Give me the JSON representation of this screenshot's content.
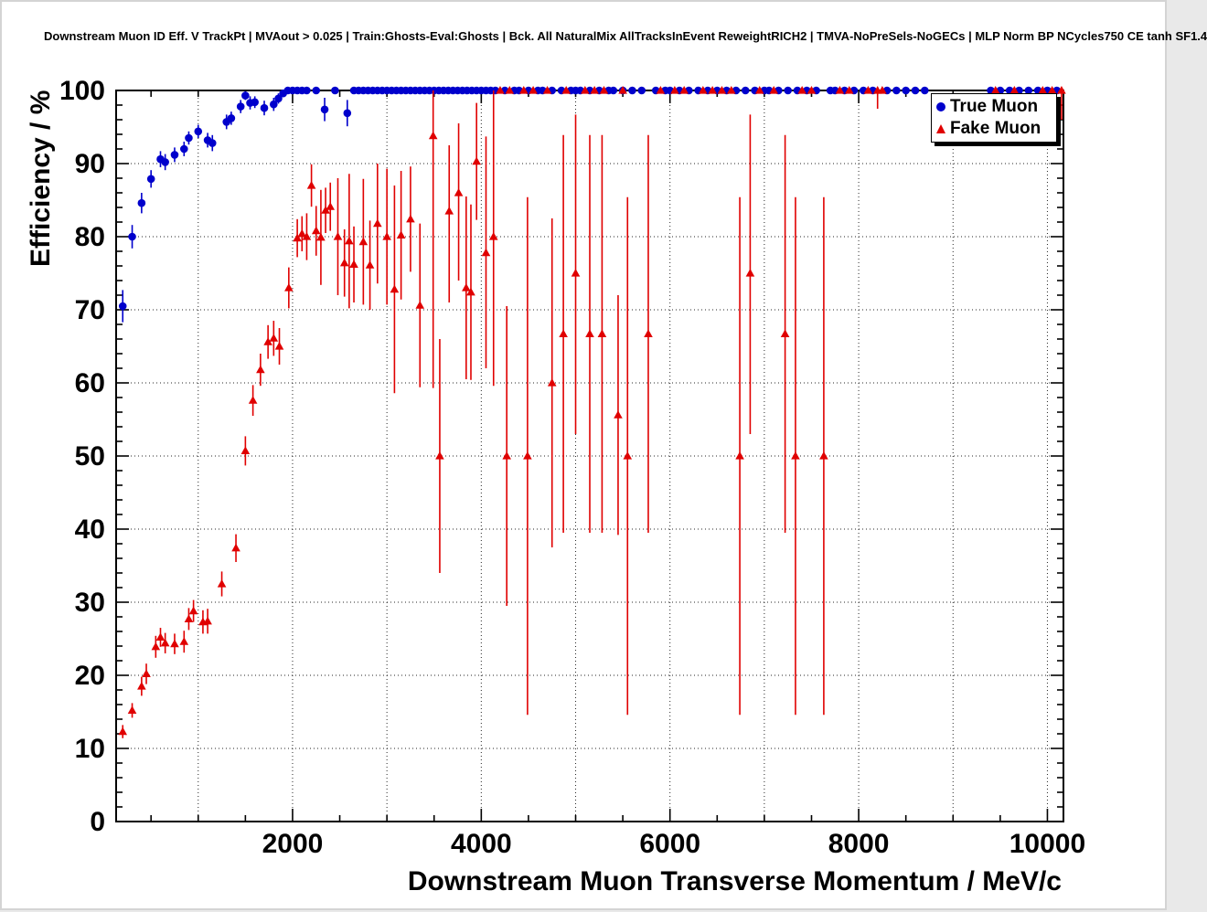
{
  "header": {
    "title": "Downstream Muon ID Eff. V TrackPt | MVAout > 0.025 | Train:Ghosts-Eval:Ghosts | Bck. All NaturalMix AllTracksInEvent ReweightRICH2 | TMVA-NoPreSels-NoGECs | MLP Norm BP NCycles750 CE tanh SF1.4"
  },
  "chart_data": {
    "type": "scatter",
    "title": "Downstream Muon ID Eff. V TrackPt | MVAout > 0.025 | Train:Ghosts-Eval:Ghosts | Bck. All NaturalMix AllTracksInEvent ReweightRICH2 | TMVA-NoPreSels-NoGECs | MLP Norm BP NCycles750 CE tanh SF1.4",
    "xlabel": "Downstream Muon Transverse Momentum / MeV/c",
    "ylabel": "Efficiency / %",
    "xlim": [
      130,
      10170
    ],
    "ylim": [
      0,
      100
    ],
    "grid": {
      "x_step": 1000,
      "y_step": 10,
      "style": "dotted"
    },
    "x_ticks": {
      "values": [
        2000,
        4000,
        6000,
        8000,
        10000
      ],
      "labels": [
        "2000",
        "4000",
        "6000",
        "8000",
        "10000"
      ],
      "minor_step": 500
    },
    "y_ticks": {
      "values": [
        0,
        10,
        20,
        30,
        40,
        50,
        60,
        70,
        80,
        90,
        100
      ],
      "labels": [
        "0",
        "10",
        "20",
        "30",
        "40",
        "50",
        "60",
        "70",
        "80",
        "90",
        "100"
      ],
      "minor_step": 2
    },
    "legend_position": "top-right",
    "series": [
      {
        "name": "True Muon",
        "marker": "circle",
        "color": "#0000cc",
        "points": [
          [
            200,
            70.5,
            2.2
          ],
          [
            300,
            80.0,
            1.6
          ],
          [
            400,
            84.6,
            1.4
          ],
          [
            500,
            87.9,
            1.2
          ],
          [
            600,
            90.6,
            1.1
          ],
          [
            650,
            90.2,
            1.1
          ],
          [
            750,
            91.2,
            1.0
          ],
          [
            850,
            92.0,
            1.0
          ],
          [
            900,
            93.5,
            0.9
          ],
          [
            1000,
            94.4,
            0.9
          ],
          [
            1100,
            93.2,
            1.0
          ],
          [
            1150,
            92.8,
            1.1
          ],
          [
            1300,
            95.7,
            1.0
          ],
          [
            1350,
            96.2,
            0.9
          ],
          [
            1450,
            97.8,
            0.9
          ],
          [
            1500,
            99.3,
            0.6
          ],
          [
            1550,
            98.3,
            0.9
          ],
          [
            1600,
            98.4,
            0.8
          ],
          [
            1700,
            97.6,
            1.0
          ],
          [
            1800,
            98.1,
            0.9
          ],
          [
            1850,
            98.9,
            0.7
          ],
          [
            1900,
            99.6,
            0.4
          ],
          [
            1950,
            100
          ],
          [
            2000,
            100
          ],
          [
            2050,
            100
          ],
          [
            2100,
            100
          ],
          [
            2150,
            100
          ],
          [
            2250,
            100
          ],
          [
            2340,
            97.4,
            1.6
          ],
          [
            2450,
            100
          ],
          [
            2580,
            96.9,
            1.8
          ],
          [
            2650,
            100
          ],
          [
            2700,
            100
          ],
          [
            2750,
            100
          ],
          [
            2800,
            100
          ],
          [
            2850,
            100
          ],
          [
            2900,
            100
          ],
          [
            2950,
            100
          ],
          [
            3000,
            100
          ],
          [
            3050,
            100
          ],
          [
            3100,
            100
          ],
          [
            3150,
            100
          ],
          [
            3200,
            100
          ],
          [
            3250,
            100
          ],
          [
            3300,
            100
          ],
          [
            3350,
            100
          ],
          [
            3400,
            100
          ],
          [
            3450,
            100
          ],
          [
            3500,
            100
          ],
          [
            3550,
            100
          ],
          [
            3600,
            100
          ],
          [
            3650,
            100
          ],
          [
            3700,
            100
          ],
          [
            3750,
            100
          ],
          [
            3800,
            100
          ],
          [
            3850,
            100
          ],
          [
            3900,
            100
          ],
          [
            3950,
            100
          ],
          [
            4000,
            100
          ],
          [
            4050,
            100
          ],
          [
            4100,
            100
          ],
          [
            4150,
            100
          ],
          [
            4250,
            100
          ],
          [
            4350,
            100
          ],
          [
            4400,
            100
          ],
          [
            4500,
            100
          ],
          [
            4600,
            100
          ],
          [
            4650,
            100
          ],
          [
            4750,
            100
          ],
          [
            4850,
            100
          ],
          [
            4950,
            100
          ],
          [
            5000,
            100
          ],
          [
            5050,
            100
          ],
          [
            5150,
            100
          ],
          [
            5250,
            100
          ],
          [
            5350,
            100
          ],
          [
            5400,
            100
          ],
          [
            5500,
            100
          ],
          [
            5600,
            100
          ],
          [
            5700,
            100
          ],
          [
            5850,
            100
          ],
          [
            5950,
            100
          ],
          [
            6000,
            100
          ],
          [
            6100,
            100
          ],
          [
            6200,
            100
          ],
          [
            6300,
            100
          ],
          [
            6400,
            100
          ],
          [
            6500,
            100
          ],
          [
            6600,
            100
          ],
          [
            6700,
            100
          ],
          [
            6800,
            100
          ],
          [
            6900,
            100
          ],
          [
            7000,
            100
          ],
          [
            7050,
            100
          ],
          [
            7150,
            100
          ],
          [
            7250,
            100
          ],
          [
            7350,
            100
          ],
          [
            7450,
            100
          ],
          [
            7550,
            100
          ],
          [
            7700,
            100
          ],
          [
            7750,
            100
          ],
          [
            7850,
            100
          ],
          [
            7950,
            100
          ],
          [
            8050,
            100
          ],
          [
            8150,
            100
          ],
          [
            8300,
            100
          ],
          [
            8400,
            100
          ],
          [
            8500,
            100
          ],
          [
            8600,
            100
          ],
          [
            8700,
            100
          ],
          [
            9400,
            100
          ],
          [
            9500,
            100
          ],
          [
            9600,
            100
          ],
          [
            9700,
            100
          ],
          [
            9800,
            100
          ],
          [
            9900,
            100
          ],
          [
            10000,
            100
          ],
          [
            10100,
            100
          ]
        ]
      },
      {
        "name": "Fake Muon",
        "marker": "triangle",
        "color": "#e00000",
        "points": [
          [
            200,
            12.3,
            0.9,
            0.9
          ],
          [
            300,
            15.2,
            1.0,
            1.0
          ],
          [
            400,
            18.5,
            1.3,
            1.3
          ],
          [
            450,
            20.2,
            1.4,
            1.4
          ],
          [
            550,
            23.9,
            1.5,
            1.5
          ],
          [
            600,
            25.2,
            1.3,
            1.3
          ],
          [
            650,
            24.4,
            1.4,
            1.4
          ],
          [
            750,
            24.3,
            1.4,
            1.4
          ],
          [
            850,
            24.6,
            1.5,
            1.5
          ],
          [
            900,
            27.7,
            1.5,
            1.5
          ],
          [
            950,
            28.8,
            1.5,
            1.5
          ],
          [
            1050,
            27.3,
            1.6,
            1.6
          ],
          [
            1100,
            27.4,
            1.7,
            1.7
          ],
          [
            1250,
            32.5,
            1.7,
            1.7
          ],
          [
            1400,
            37.4,
            1.9,
            1.9
          ],
          [
            1500,
            50.7,
            2.0,
            2.0
          ],
          [
            1580,
            57.6,
            2.1,
            2.1
          ],
          [
            1660,
            61.8,
            2.2,
            2.2
          ],
          [
            1740,
            65.6,
            2.3,
            2.3
          ],
          [
            1800,
            66.1,
            2.4,
            2.4
          ],
          [
            1860,
            65.0,
            2.5,
            2.5
          ],
          [
            1960,
            73.0,
            2.8,
            2.8
          ],
          [
            2050,
            79.8,
            2.6,
            2.6
          ],
          [
            2100,
            80.4,
            2.4,
            2.4
          ],
          [
            2150,
            80.0,
            3.2,
            3.2
          ],
          [
            2200,
            87.0,
            2.9,
            2.9
          ],
          [
            2250,
            80.8,
            3.4,
            3.4
          ],
          [
            2300,
            79.9,
            6.5,
            6.5
          ],
          [
            2350,
            83.6,
            3.1,
            3.1
          ],
          [
            2400,
            84.1,
            3.3,
            3.3
          ],
          [
            2480,
            80.0,
            8.0,
            8.0
          ],
          [
            2550,
            76.4,
            4.6,
            4.6
          ],
          [
            2600,
            79.4,
            9.2,
            9.2
          ],
          [
            2650,
            76.2,
            5.2,
            5.2
          ],
          [
            2750,
            79.3,
            8.6,
            8.6
          ],
          [
            2820,
            76.1,
            6.1,
            6.1
          ],
          [
            2900,
            81.8,
            8.2,
            8.2
          ],
          [
            3000,
            80.0,
            9.3,
            9.3
          ],
          [
            3080,
            72.8,
            14.2,
            14.2
          ],
          [
            3150,
            80.2,
            8.8,
            8.8
          ],
          [
            3250,
            82.4,
            7.2,
            7.2
          ],
          [
            3350,
            70.6,
            11.2,
            11.2
          ],
          [
            3490,
            93.8,
            34.5,
            6.2
          ],
          [
            3560,
            50.0,
            16.0,
            16.0
          ],
          [
            3660,
            83.5,
            12.5,
            9.0
          ],
          [
            3760,
            86.0,
            12.0,
            9.5
          ],
          [
            3840,
            73.0,
            12.5,
            12.5
          ],
          [
            3890,
            72.4,
            12.0,
            12.0
          ],
          [
            3950,
            90.3,
            8.0,
            8.0
          ],
          [
            4050,
            77.8,
            15.8,
            15.9
          ],
          [
            4130,
            80.0,
            20.4,
            20.0
          ],
          [
            4200,
            100
          ],
          [
            4270,
            50.0,
            20.5,
            20.5
          ],
          [
            4300,
            100
          ],
          [
            4450,
            100
          ],
          [
            4490,
            50.0,
            35.4,
            35.4
          ],
          [
            4550,
            100
          ],
          [
            4700,
            100
          ],
          [
            4750,
            60.0,
            22.5,
            22.5
          ],
          [
            4870,
            66.7,
            27.2,
            27.2
          ],
          [
            4900,
            100
          ],
          [
            5000,
            75.0,
            22.0,
            21.7
          ],
          [
            5100,
            100
          ],
          [
            5150,
            66.7,
            27.2,
            27.2
          ],
          [
            5200,
            100
          ],
          [
            5280,
            66.7,
            27.2,
            27.2
          ],
          [
            5300,
            100
          ],
          [
            5450,
            55.6,
            16.4,
            16.4
          ],
          [
            5500,
            100
          ],
          [
            5550,
            50.0,
            35.4,
            35.4
          ],
          [
            5770,
            66.7,
            27.2,
            27.2
          ],
          [
            5900,
            100
          ],
          [
            6050,
            100
          ],
          [
            6150,
            100
          ],
          [
            6350,
            100
          ],
          [
            6450,
            100
          ],
          [
            6550,
            100
          ],
          [
            6650,
            100
          ],
          [
            6740,
            50.0,
            35.4,
            35.4
          ],
          [
            6850,
            75.0,
            22.0,
            21.7
          ],
          [
            6950,
            100
          ],
          [
            7100,
            100
          ],
          [
            7220,
            66.7,
            27.2,
            27.2
          ],
          [
            7330,
            50.0,
            35.4,
            35.4
          ],
          [
            7400,
            100
          ],
          [
            7500,
            100
          ],
          [
            7630,
            50.0,
            35.4,
            35.4
          ],
          [
            7800,
            100
          ],
          [
            7900,
            100
          ],
          [
            8100,
            100
          ],
          [
            8200,
            100,
            2.5,
            0
          ],
          [
            8250,
            100
          ],
          [
            9450,
            100
          ],
          [
            9650,
            100
          ],
          [
            9950,
            100
          ],
          [
            10050,
            100
          ],
          [
            10150,
            100,
            4.0,
            0
          ]
        ]
      }
    ]
  }
}
